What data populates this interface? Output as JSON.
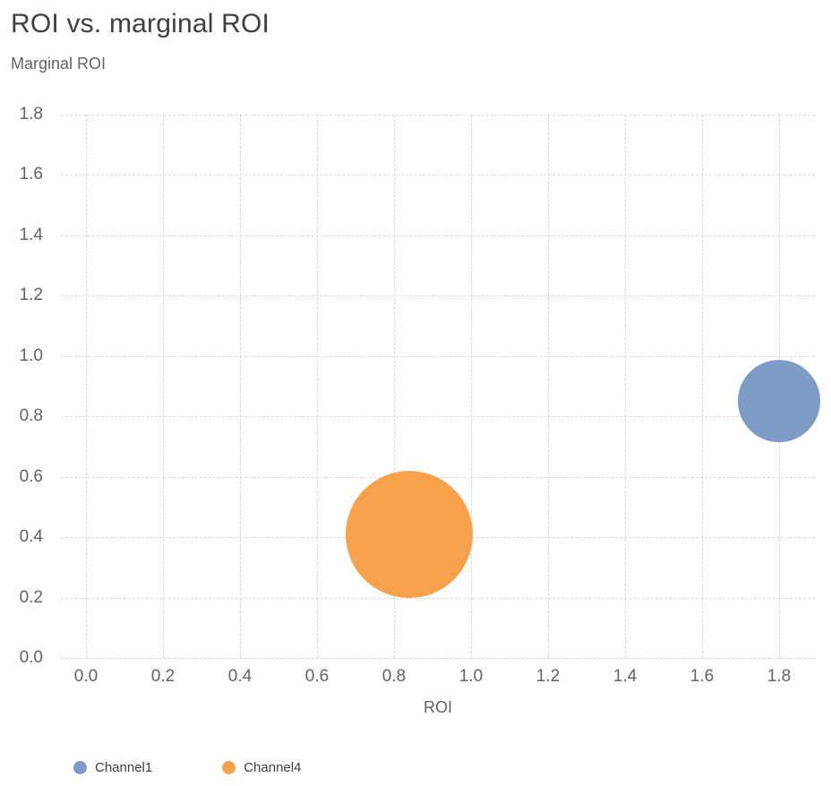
{
  "chart_data": {
    "type": "scatter",
    "title": "ROI vs. marginal ROI",
    "xlabel": "ROI",
    "ylabel": "Marginal ROI",
    "xlim": [
      0,
      1.8
    ],
    "ylim": [
      0,
      1.8
    ],
    "xticks": [
      0,
      0.2,
      0.4,
      0.6,
      0.8,
      1.0,
      1.2,
      1.4,
      1.6,
      1.8
    ],
    "yticks": [
      0,
      0.2,
      0.4,
      0.6,
      0.8,
      1.0,
      1.2,
      1.4,
      1.6,
      1.8
    ],
    "grid": "dashed",
    "legend_position": "bottom",
    "series": [
      {
        "name": "Channel1",
        "x": 1.8,
        "y": 0.85,
        "radius_px": 46,
        "color": "#7d9bc4"
      },
      {
        "name": "Channel4",
        "x": 0.84,
        "y": 0.41,
        "radius_px": 71,
        "color": "#f7a14c"
      }
    ]
  },
  "colors": {
    "grid": "#d8d8d8",
    "title_text": "#3c4043",
    "axis_text": "#5f6368"
  }
}
